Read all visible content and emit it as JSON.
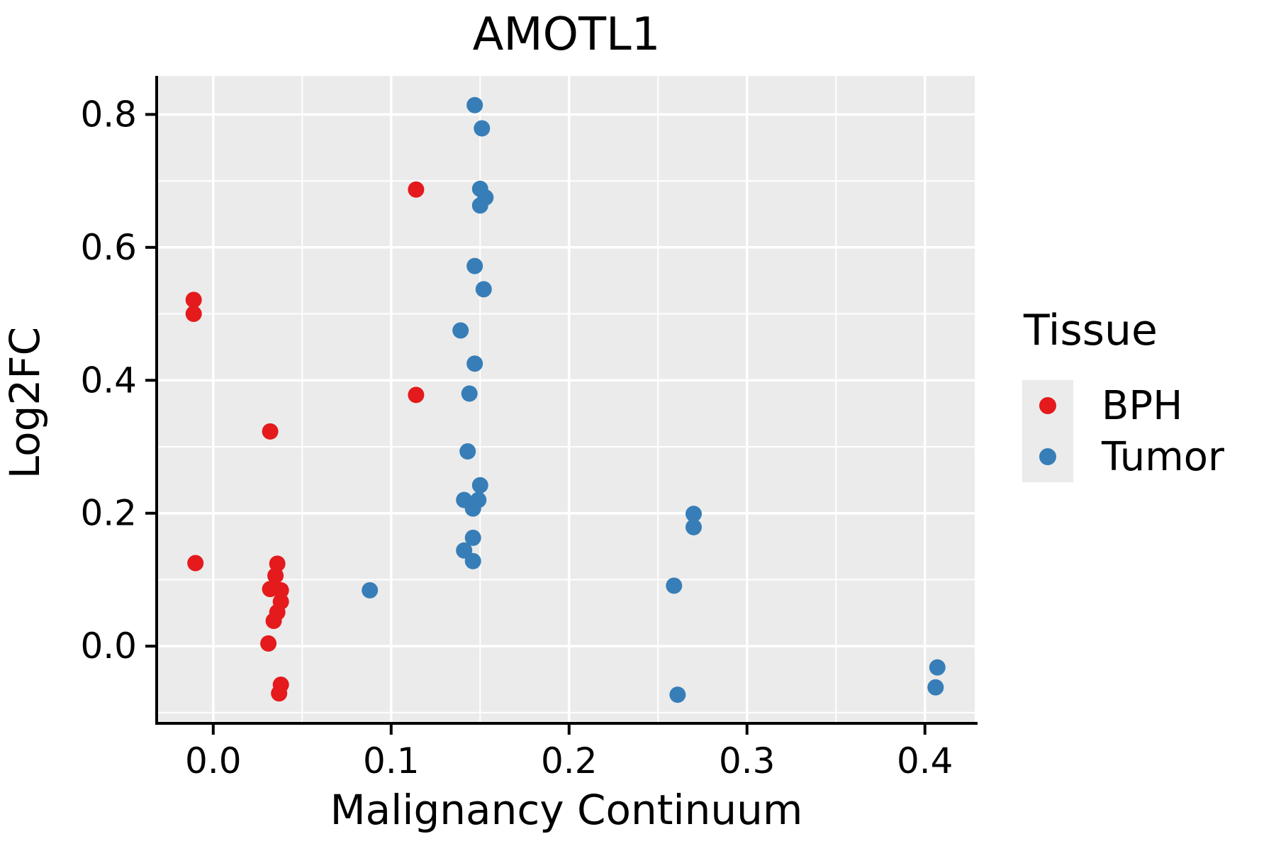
{
  "figure": {
    "title": "AMOTL1"
  },
  "axes": {
    "x_label": "Malignancy Continuum",
    "y_label": "Log2FC"
  },
  "legend": {
    "title": "Tissue",
    "entries": [
      {
        "label": "BPH",
        "color": "#E41A1C"
      },
      {
        "label": "Tumor",
        "color": "#377EB8"
      }
    ]
  },
  "chart_data": {
    "type": "scatter",
    "title": "AMOTL1",
    "xlabel": "Malignancy Continuum",
    "ylabel": "Log2FC",
    "xlim": [
      -0.031,
      0.428
    ],
    "ylim": [
      -0.114,
      0.858
    ],
    "x_major_ticks": [
      0.0,
      0.1,
      0.2,
      0.3,
      0.4
    ],
    "x_tick_labels": [
      "0.0",
      "0.1",
      "0.2",
      "0.3",
      "0.4"
    ],
    "x_minor_ticks": [
      0.05,
      0.15,
      0.25,
      0.35
    ],
    "y_major_ticks": [
      0.0,
      0.2,
      0.4,
      0.6,
      0.8
    ],
    "y_tick_labels": [
      "0.0",
      "0.2",
      "0.4",
      "0.6",
      "0.8"
    ],
    "y_minor_ticks": [
      -0.1,
      0.1,
      0.3,
      0.5,
      0.7
    ],
    "grid": true,
    "legend_position": "right",
    "panel_background": "#EBEBEB",
    "gridline_color": "#FFFFFF",
    "point_radius": 11.5,
    "series": [
      {
        "name": "BPH",
        "color": "#E41A1C",
        "points": [
          [
            -0.011,
            0.521
          ],
          [
            -0.011,
            0.5
          ],
          [
            -0.01,
            0.125
          ],
          [
            0.114,
            0.687
          ],
          [
            0.114,
            0.378
          ],
          [
            0.032,
            0.323
          ],
          [
            0.036,
            0.124
          ],
          [
            0.035,
            0.106
          ],
          [
            0.032,
            0.086
          ],
          [
            0.038,
            0.084
          ],
          [
            0.038,
            0.067
          ],
          [
            0.036,
            0.051
          ],
          [
            0.034,
            0.038
          ],
          [
            0.031,
            0.004
          ],
          [
            0.038,
            -0.058
          ],
          [
            0.037,
            -0.071
          ]
        ]
      },
      {
        "name": "Tumor",
        "color": "#377EB8",
        "points": [
          [
            0.147,
            0.814
          ],
          [
            0.151,
            0.779
          ],
          [
            0.15,
            0.688
          ],
          [
            0.153,
            0.675
          ],
          [
            0.15,
            0.663
          ],
          [
            0.147,
            0.572
          ],
          [
            0.152,
            0.537
          ],
          [
            0.139,
            0.475
          ],
          [
            0.147,
            0.425
          ],
          [
            0.144,
            0.38
          ],
          [
            0.143,
            0.293
          ],
          [
            0.15,
            0.242
          ],
          [
            0.141,
            0.22
          ],
          [
            0.149,
            0.22
          ],
          [
            0.146,
            0.207
          ],
          [
            0.146,
            0.163
          ],
          [
            0.141,
            0.144
          ],
          [
            0.146,
            0.128
          ],
          [
            0.088,
            0.084
          ],
          [
            0.27,
            0.199
          ],
          [
            0.27,
            0.179
          ],
          [
            0.259,
            0.091
          ],
          [
            0.261,
            -0.073
          ],
          [
            0.407,
            -0.032
          ],
          [
            0.406,
            -0.062
          ]
        ]
      }
    ]
  }
}
